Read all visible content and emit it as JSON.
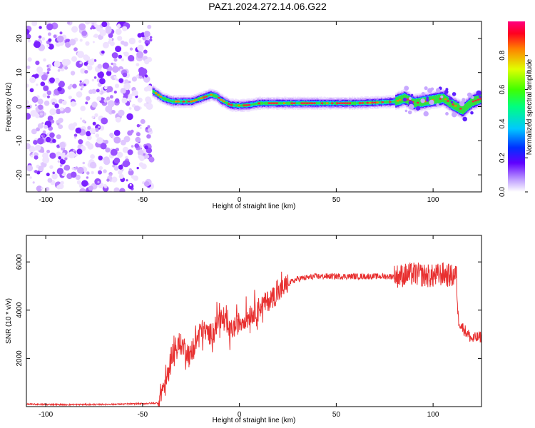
{
  "title": "PAZ1.2024.272.14.06.G22",
  "chart_data": [
    {
      "type": "heatmap",
      "xlabel": "Height of straight line (km)",
      "ylabel": "Frequency (Hz)",
      "xlim": [
        -110,
        125
      ],
      "ylim": [
        -25,
        25
      ],
      "xticks": [
        -100,
        -50,
        0,
        50,
        100
      ],
      "yticks": [
        -20,
        -10,
        0,
        10,
        20
      ],
      "colorbar": {
        "label": "Normalized spectral amplitude",
        "range": [
          0.0,
          1.0
        ],
        "ticks": [
          0.0,
          0.2,
          0.4,
          0.6,
          0.8
        ],
        "tick_labels": [
          "0.0",
          "0.2",
          "0.4",
          "0.6",
          "0.8"
        ],
        "colormap": [
          "#ffffff",
          "#b070ff",
          "#5000ff",
          "#0060ff",
          "#00e0ff",
          "#00e040",
          "#c0ff00",
          "#ff4000",
          "#ff0060"
        ]
      },
      "noise_region_x": [
        -110,
        -45
      ],
      "ridge_x": [
        -45,
        -40,
        -35,
        -30,
        -25,
        -20,
        -15,
        -12,
        -10,
        -5,
        0,
        5,
        10,
        20,
        30,
        40,
        50,
        60,
        70,
        80,
        85,
        90,
        95,
        100,
        105,
        110,
        115,
        120,
        125
      ],
      "ridge_y": [
        4.5,
        2.5,
        1.5,
        1.5,
        1.5,
        2.5,
        3.5,
        3.0,
        2.0,
        0.5,
        0.3,
        0.5,
        1.0,
        1.0,
        1.0,
        1.0,
        1.0,
        1.0,
        1.2,
        1.5,
        2.5,
        1.0,
        1.5,
        2.0,
        2.5,
        0.5,
        -1.0,
        1.5,
        2.5
      ]
    },
    {
      "type": "line",
      "xlabel": "Height of straight line (km)",
      "ylabel": "SNR (10 * v/v)",
      "xlim": [
        -110,
        125
      ],
      "ylim": [
        0,
        7100
      ],
      "xticks": [
        -100,
        -50,
        0,
        50,
        100
      ],
      "yticks": [
        2000,
        4000,
        6000
      ],
      "color": "#e83030",
      "x": [
        -110,
        -90,
        -70,
        -50,
        -42,
        -40,
        -38,
        -35,
        -30,
        -25,
        -20,
        -15,
        -10,
        -5,
        0,
        10,
        20,
        25,
        30,
        40,
        50,
        60,
        70,
        80,
        90,
        100,
        105,
        110,
        112,
        113,
        115,
        120,
        125
      ],
      "y": [
        100,
        80,
        90,
        120,
        150,
        700,
        900,
        2200,
        2600,
        2100,
        3200,
        3000,
        3700,
        3100,
        3500,
        4100,
        4700,
        5100,
        5300,
        5400,
        5400,
        5400,
        5400,
        5400,
        5500,
        5400,
        5500,
        5400,
        5500,
        3600,
        3300,
        2800,
        2900
      ]
    }
  ]
}
